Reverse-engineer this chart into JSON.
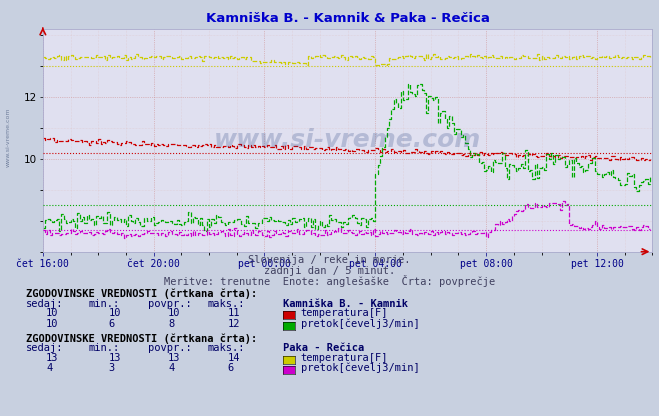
{
  "title": "Kamniška B. - Kamnik & Paka - Rečica",
  "subtitle1": "Slovenija / reke in morje.",
  "subtitle2": "zadnji dan / 5 minut.",
  "subtitle3": "Meritve: trenutne  Enote: anglešaške  Črta: povprečje",
  "bg_color": "#c8d0e0",
  "plot_bg_color": "#e0e0f0",
  "title_color": "#0000cc",
  "subtitle_color": "#404060",
  "grid_color_major": "#cc8888",
  "grid_color_minor": "#ddbbbb",
  "xlabel_color": "#000088",
  "xtick_labels": [
    "čet 16:00",
    "čet 20:00",
    "pet 00:00",
    "pet 04:00",
    "pet 08:00",
    "pet 12:00"
  ],
  "ylim": [
    7.0,
    14.2
  ],
  "xlim": [
    0,
    264
  ],
  "watermark": "www.si-vreme.com",
  "colors": {
    "kamnik_temp": "#cc0000",
    "kamnik_flow": "#00aa00",
    "recica_temp": "#cccc00",
    "recica_flow": "#cc00cc"
  },
  "avgs": {
    "kamnik_temp": 10.2,
    "kamnik_flow": 8.5,
    "recica_temp": 13.0,
    "recica_flow": 7.7
  },
  "table1_header": "ZGODOVINSKE VREDNOSTI (črtkana črta):",
  "table1_title": "Kamniška B. - Kamnik",
  "table1_rows": [
    {
      "sedaj": "10",
      "min": "10",
      "povpr": "10",
      "maks": "11",
      "color": "#cc0000",
      "label": "temperatura[F]"
    },
    {
      "sedaj": "10",
      "min": "6",
      "povpr": "8",
      "maks": "12",
      "color": "#00aa00",
      "label": "pretok[čevelj3/min]"
    }
  ],
  "table2_header": "ZGODOVINSKE VREDNOSTI (črtkana črta):",
  "table2_title": "Paka - Rečica",
  "table2_rows": [
    {
      "sedaj": "13",
      "min": "13",
      "povpr": "13",
      "maks": "14",
      "color": "#cccc00",
      "label": "temperatura[F]"
    },
    {
      "sedaj": "4",
      "min": "3",
      "povpr": "4",
      "maks": "6",
      "color": "#cc00cc",
      "label": "pretok[čevelj3/min]"
    }
  ]
}
